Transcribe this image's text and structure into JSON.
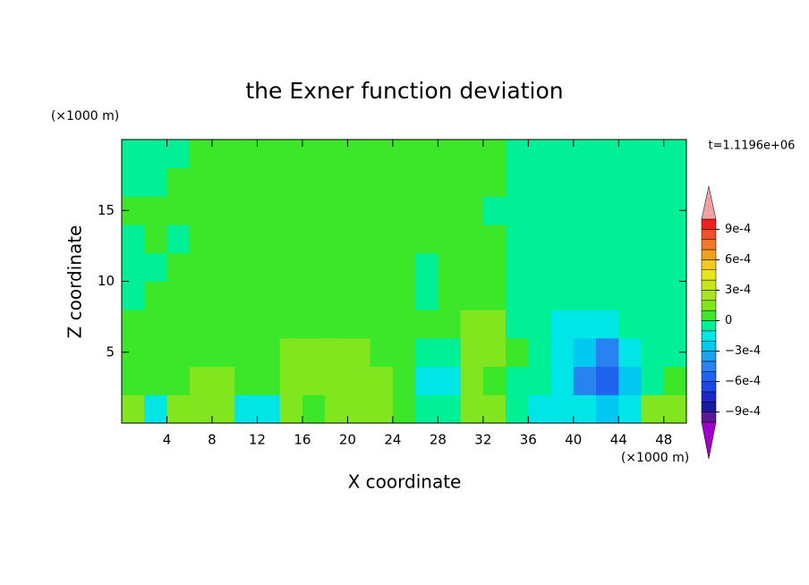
{
  "chart_data": {
    "type": "contour",
    "title": "the Exner function deviation",
    "xlabel": "X coordinate",
    "ylabel": "Z coordinate",
    "x_unit": "(×1000 m)",
    "y_unit": "(×1000 m)",
    "annotation": "t=1.1196e+06",
    "xlim": [
      0,
      50
    ],
    "ylim": [
      0,
      20
    ],
    "xticks": [
      4,
      8,
      12,
      16,
      20,
      24,
      28,
      32,
      36,
      40,
      44,
      48
    ],
    "yticks": [
      5,
      10,
      15
    ],
    "x": [
      1,
      3,
      5,
      7,
      9,
      11,
      13,
      15,
      17,
      19,
      21,
      23,
      25,
      27,
      29,
      31,
      33,
      35,
      37,
      39,
      41,
      43,
      45,
      47,
      49
    ],
    "y": [
      1,
      3,
      5,
      7,
      9,
      11,
      13,
      15,
      17,
      19
    ],
    "values": [
      [
        0.00015,
        -0.00015,
        0.00015,
        0.00015,
        0.00015,
        -0.00015,
        -0.00015,
        0.00015,
        5e-05,
        0.00015,
        0.00015,
        0.00015,
        5e-05,
        -5e-05,
        -5e-05,
        0.00015,
        0.00015,
        -5e-05,
        -0.00015,
        -0.00015,
        -0.00015,
        -0.00025,
        -0.00015,
        0.00015,
        0.00015
      ],
      [
        5e-05,
        5e-05,
        5e-05,
        0.00015,
        0.00015,
        5e-05,
        5e-05,
        0.00015,
        0.00015,
        0.00015,
        0.00015,
        0.00015,
        5e-05,
        -0.00015,
        -0.00015,
        0.00015,
        5e-05,
        -5e-05,
        -5e-05,
        -0.00015,
        -0.00045,
        -0.00055,
        -0.00025,
        -5e-05,
        5e-05
      ],
      [
        5e-05,
        5e-05,
        5e-05,
        5e-05,
        5e-05,
        5e-05,
        5e-05,
        0.00015,
        0.00015,
        0.00015,
        0.00015,
        5e-05,
        5e-05,
        -5e-05,
        -5e-05,
        0.00015,
        0.00015,
        5e-05,
        -5e-05,
        -0.00015,
        -0.00025,
        -0.00045,
        -0.00015,
        -5e-05,
        -5e-05
      ],
      [
        5e-05,
        5e-05,
        5e-05,
        5e-05,
        5e-05,
        5e-05,
        5e-05,
        5e-05,
        5e-05,
        5e-05,
        5e-05,
        5e-05,
        5e-05,
        5e-05,
        5e-05,
        0.00015,
        0.00015,
        -5e-05,
        -5e-05,
        -0.00015,
        -0.00015,
        -0.00015,
        -5e-05,
        -5e-05,
        -5e-05
      ],
      [
        -5e-05,
        5e-05,
        5e-05,
        5e-05,
        5e-05,
        5e-05,
        5e-05,
        5e-05,
        5e-05,
        5e-05,
        5e-05,
        5e-05,
        5e-05,
        -5e-05,
        5e-05,
        5e-05,
        5e-05,
        -5e-05,
        -5e-05,
        -5e-05,
        -5e-05,
        -5e-05,
        -5e-05,
        -5e-05,
        -5e-05
      ],
      [
        -5e-05,
        -5e-05,
        5e-05,
        5e-05,
        5e-05,
        5e-05,
        5e-05,
        5e-05,
        5e-05,
        5e-05,
        5e-05,
        5e-05,
        5e-05,
        -5e-05,
        5e-05,
        5e-05,
        5e-05,
        -5e-05,
        -5e-05,
        -5e-05,
        -5e-05,
        -5e-05,
        -5e-05,
        -5e-05,
        -5e-05
      ],
      [
        -5e-05,
        5e-05,
        -5e-05,
        5e-05,
        5e-05,
        5e-05,
        5e-05,
        5e-05,
        5e-05,
        5e-05,
        5e-05,
        5e-05,
        5e-05,
        5e-05,
        5e-05,
        5e-05,
        5e-05,
        -5e-05,
        -5e-05,
        -5e-05,
        -5e-05,
        -5e-05,
        -5e-05,
        -5e-05,
        -5e-05
      ],
      [
        5e-05,
        5e-05,
        5e-05,
        5e-05,
        5e-05,
        5e-05,
        5e-05,
        5e-05,
        5e-05,
        5e-05,
        5e-05,
        5e-05,
        5e-05,
        5e-05,
        5e-05,
        5e-05,
        -5e-05,
        -5e-05,
        -5e-05,
        -5e-05,
        -5e-05,
        -5e-05,
        -5e-05,
        -5e-05,
        -5e-05
      ],
      [
        -5e-05,
        -5e-05,
        5e-05,
        5e-05,
        5e-05,
        5e-05,
        5e-05,
        5e-05,
        5e-05,
        5e-05,
        5e-05,
        5e-05,
        5e-05,
        5e-05,
        5e-05,
        5e-05,
        5e-05,
        -5e-05,
        -5e-05,
        -5e-05,
        -5e-05,
        -5e-05,
        -5e-05,
        -5e-05,
        -5e-05
      ],
      [
        -5e-05,
        -5e-05,
        -5e-05,
        5e-05,
        5e-05,
        5e-05,
        5e-05,
        5e-05,
        5e-05,
        5e-05,
        5e-05,
        5e-05,
        5e-05,
        5e-05,
        5e-05,
        5e-05,
        5e-05,
        -5e-05,
        -5e-05,
        -5e-05,
        -5e-05,
        -5e-05,
        -5e-05,
        -5e-05,
        -5e-05
      ]
    ],
    "levels": [
      -0.001,
      -0.0009,
      -0.0008,
      -0.0007,
      -0.0006,
      -0.0005,
      -0.0004,
      -0.0003,
      -0.0002,
      -0.0001,
      0,
      0.0001,
      0.0002,
      0.0003,
      0.0004,
      0.0005,
      0.0006,
      0.0007,
      0.0008,
      0.0009,
      0.001
    ],
    "colors": [
      "#5a1a9a",
      "#1a1aa0",
      "#1e28c8",
      "#1e46e6",
      "#1e64f0",
      "#2882f0",
      "#1ea0f0",
      "#00c8f0",
      "#00e6e6",
      "#00f096",
      "#3ce628",
      "#82e61e",
      "#a8e61e",
      "#c8e61e",
      "#e6e61e",
      "#f0c81e",
      "#f0a01e",
      "#f07828",
      "#f05028",
      "#f02020"
    ],
    "over_color": "#f0a0a0",
    "under_color": "#a000c8",
    "colorbar_ticks": [
      {
        "value": 0.0009,
        "label": "9e-4"
      },
      {
        "value": 0.0006,
        "label": "6e-4"
      },
      {
        "value": 0.0003,
        "label": "3e-4"
      },
      0,
      {
        "value": -0.0003,
        "label": "−3e-4"
      },
      {
        "value": -0.0006,
        "label": "−6e-4"
      },
      {
        "value": -0.0009,
        "label": "−9e-4"
      }
    ]
  }
}
